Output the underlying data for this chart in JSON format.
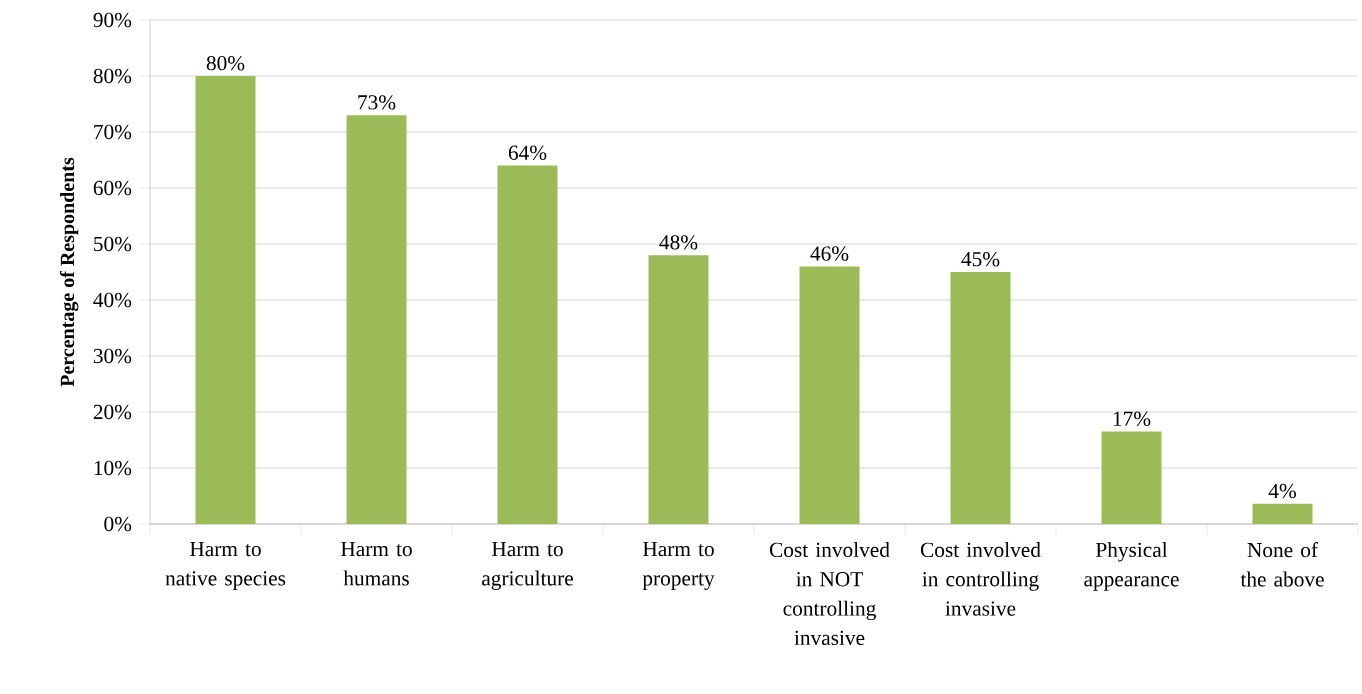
{
  "chart_data": {
    "type": "bar",
    "ylabel": "Percentage of Respondents",
    "categories": [
      "Harm to native species",
      "Harm to humans",
      "Harm to agriculture",
      "Harm to property",
      "Cost involved in NOT controlling invasive",
      "Cost involved in controlling invasive",
      "Physical appearance",
      "None of the above"
    ],
    "values": [
      80,
      73,
      64,
      48,
      46,
      45,
      16.5,
      3.6
    ],
    "value_labels": [
      "80%",
      "73%",
      "64%",
      "48%",
      "46%",
      "45%",
      "17%",
      "4%"
    ],
    "color": "#9bbb59",
    "ylim": [
      0,
      90
    ],
    "yticks": [
      {
        "value": 0,
        "label": "0%"
      },
      {
        "value": 10,
        "label": "10%"
      },
      {
        "value": 20,
        "label": "20%"
      },
      {
        "value": 30,
        "label": "30%"
      },
      {
        "value": 40,
        "label": "40%"
      },
      {
        "value": 50,
        "label": "50%"
      },
      {
        "value": 60,
        "label": "60%"
      },
      {
        "value": 70,
        "label": "70%"
      },
      {
        "value": 80,
        "label": "80%"
      },
      {
        "value": 90,
        "label": "90%"
      }
    ],
    "grid": "y"
  }
}
